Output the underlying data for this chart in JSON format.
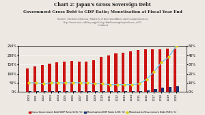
{
  "title1": "Chart 2: Japan's Gross Sovereign Debt",
  "title2": "Government Gross Debt to GDP Ratio; Monetisation at Fiscal Year End",
  "source": "Source: Statistics Bureau, Ministry of Internal Affairs and Communication,\nhttp://www.stat.adb.hq.or.jp/cis/cgi-bin/houseigi/top/release_e/50\n: Cabinet",
  "years": [
    "2000",
    "2001",
    "2002",
    "2003",
    "2004",
    "2005",
    "2006",
    "2007",
    "2008",
    "2009",
    "2010",
    "2011",
    "2012",
    "2013",
    "2014",
    "2015",
    "2016",
    "2017",
    "2018",
    "2019",
    "2020"
  ],
  "gross_debt_gdp": [
    127,
    138,
    146,
    155,
    160,
    165,
    168,
    167,
    167,
    174,
    193,
    200,
    208,
    214,
    222,
    228,
    232,
    232,
    233,
    235,
    236
  ],
  "monetisation_gdp": [
    5,
    5,
    5,
    6,
    6,
    7,
    6,
    6,
    6,
    6,
    7,
    7,
    7,
    7,
    6,
    7,
    10,
    15,
    22,
    26,
    30
  ],
  "monetisation_govt_debt": [
    10,
    10,
    9,
    10,
    10,
    10,
    10,
    10,
    10,
    9,
    9,
    8,
    8,
    8,
    8,
    9,
    14,
    22,
    32,
    38,
    50
  ],
  "left_ylim": [
    0,
    250
  ],
  "right_ylim": [
    0,
    50
  ],
  "left_yticks": [
    0,
    50,
    100,
    150,
    200,
    250
  ],
  "right_yticks": [
    0,
    10,
    20,
    30,
    40,
    50
  ],
  "color_red": "#CC1111",
  "color_blue": "#1A3070",
  "color_line": "#70C8E8",
  "color_dot": "#E8D010",
  "bg_color": "#EDE9E2",
  "legend_labels": [
    "Gross Government Debt/GDP Ratio (LHS: %)",
    "Monetisation/GDP Ratio (LHS: %)",
    "Monetisation/Government Debt (RHS: %)"
  ]
}
